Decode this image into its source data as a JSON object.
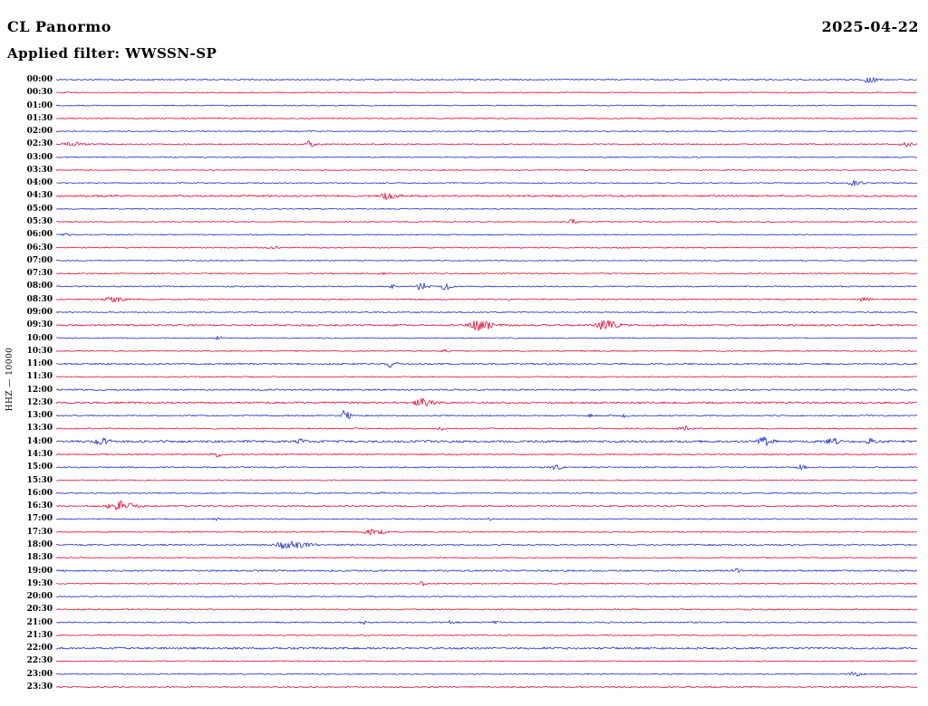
{
  "header": {
    "title": "CL Panormo",
    "date": "2025-04-22",
    "filter_label": "Applied filter: WWSSN-SP"
  },
  "y_axis_label": "HHZ — 10000",
  "chart_data": {
    "type": "line",
    "subtype": "helicorder-dayplot",
    "title": "CL Panormo",
    "date": "2025-04-22",
    "filter": "WWSSN-SP",
    "channel": "HHZ",
    "scale": 10000,
    "minutes_per_row": 30,
    "legend_position": "none",
    "grid": false,
    "colors": {
      "blue": "#2130c8",
      "red": "#e0103a"
    },
    "row_color_cycle": [
      "blue",
      "red"
    ],
    "rows": [
      {
        "label": "00:00",
        "color": "blue",
        "noise": 0.7,
        "events": [
          [
            0.944,
            5,
            3,
            6
          ]
        ]
      },
      {
        "label": "00:30",
        "color": "red",
        "noise": 0.6,
        "events": []
      },
      {
        "label": "01:00",
        "color": "blue",
        "noise": 0.6,
        "events": []
      },
      {
        "label": "01:30",
        "color": "red",
        "noise": 0.6,
        "events": []
      },
      {
        "label": "02:00",
        "color": "blue",
        "noise": 0.6,
        "events": []
      },
      {
        "label": "02:30",
        "color": "red",
        "noise": 0.7,
        "events": [
          [
            0.018,
            2.5,
            6,
            10
          ],
          [
            0.293,
            3.5,
            2,
            4
          ],
          [
            0.99,
            2,
            5,
            5
          ]
        ]
      },
      {
        "label": "03:00",
        "color": "blue",
        "noise": 0.6,
        "events": []
      },
      {
        "label": "03:30",
        "color": "red",
        "noise": 0.6,
        "events": []
      },
      {
        "label": "04:00",
        "color": "blue",
        "noise": 0.6,
        "events": [
          [
            0.926,
            3,
            4,
            8
          ]
        ]
      },
      {
        "label": "04:30",
        "color": "red",
        "noise": 1.0,
        "events": [
          [
            0.383,
            4,
            4,
            9
          ]
        ]
      },
      {
        "label": "05:00",
        "color": "blue",
        "noise": 0.6,
        "events": []
      },
      {
        "label": "05:30",
        "color": "red",
        "noise": 0.6,
        "events": [
          [
            0.599,
            2.5,
            3,
            5
          ]
        ]
      },
      {
        "label": "06:00",
        "color": "blue",
        "noise": 0.6,
        "events": [
          [
            0.014,
            1.8,
            3,
            3
          ]
        ]
      },
      {
        "label": "06:30",
        "color": "red",
        "noise": 0.6,
        "events": [
          [
            0.251,
            1.8,
            3,
            4
          ]
        ]
      },
      {
        "label": "07:00",
        "color": "blue",
        "noise": 0.6,
        "events": []
      },
      {
        "label": "07:30",
        "color": "red",
        "noise": 0.6,
        "events": [
          [
            0.377,
            1.5,
            2,
            3
          ]
        ]
      },
      {
        "label": "08:00",
        "color": "blue",
        "noise": 0.7,
        "events": [
          [
            0.39,
            3,
            2,
            3
          ],
          [
            0.423,
            7,
            2,
            5
          ],
          [
            0.451,
            4.5,
            2,
            4
          ]
        ]
      },
      {
        "label": "08:30",
        "color": "red",
        "noise": 0.7,
        "events": [
          [
            0.066,
            2.5,
            6,
            10
          ],
          [
            0.937,
            2,
            4,
            6
          ]
        ]
      },
      {
        "label": "09:00",
        "color": "blue",
        "noise": 0.6,
        "events": []
      },
      {
        "label": "09:30",
        "color": "red",
        "noise": 1.0,
        "events": [
          [
            0.488,
            5.5,
            5,
            14
          ],
          [
            0.636,
            6,
            5,
            10
          ]
        ]
      },
      {
        "label": "10:00",
        "color": "blue",
        "noise": 0.6,
        "events": [
          [
            0.188,
            1.8,
            2,
            3
          ]
        ]
      },
      {
        "label": "10:30",
        "color": "red",
        "noise": 0.6,
        "events": [
          [
            0.451,
            1.5,
            2,
            3
          ]
        ]
      },
      {
        "label": "11:00",
        "color": "blue",
        "noise": 0.9,
        "events": [
          [
            0.388,
            3,
            3,
            6
          ]
        ]
      },
      {
        "label": "11:30",
        "color": "red",
        "noise": 0.6,
        "events": []
      },
      {
        "label": "12:00",
        "color": "blue",
        "noise": 0.9,
        "events": []
      },
      {
        "label": "12:30",
        "color": "red",
        "noise": 1.0,
        "events": [
          [
            0.42,
            4.5,
            3,
            12
          ]
        ]
      },
      {
        "label": "13:00",
        "color": "blue",
        "noise": 0.7,
        "events": [
          [
            0.335,
            6.5,
            2,
            4
          ],
          [
            0.62,
            1.5,
            2,
            3
          ],
          [
            0.66,
            1.5,
            2,
            3
          ]
        ]
      },
      {
        "label": "13:30",
        "color": "red",
        "noise": 0.7,
        "events": [
          [
            0.446,
            2.5,
            2,
            3
          ],
          [
            0.728,
            3.5,
            3,
            5
          ]
        ]
      },
      {
        "label": "14:00",
        "color": "blue",
        "noise": 1.2,
        "events": [
          [
            0.051,
            3.5,
            4,
            7
          ],
          [
            0.283,
            2,
            3,
            4
          ],
          [
            0.82,
            4.5,
            4,
            8
          ],
          [
            0.9,
            3.5,
            3,
            6
          ],
          [
            0.945,
            2.5,
            3,
            4
          ]
        ]
      },
      {
        "label": "14:30",
        "color": "red",
        "noise": 0.7,
        "events": [
          [
            0.185,
            2.5,
            3,
            5
          ]
        ]
      },
      {
        "label": "15:00",
        "color": "blue",
        "noise": 0.7,
        "events": [
          [
            0.58,
            3,
            3,
            5
          ],
          [
            0.865,
            2.5,
            2,
            4
          ]
        ]
      },
      {
        "label": "15:30",
        "color": "red",
        "noise": 0.6,
        "events": []
      },
      {
        "label": "16:00",
        "color": "blue",
        "noise": 0.6,
        "events": [
          [
            0.378,
            1.5,
            2,
            3
          ]
        ]
      },
      {
        "label": "16:30",
        "color": "red",
        "noise": 0.8,
        "events": [
          [
            0.066,
            5.5,
            4,
            16
          ]
        ]
      },
      {
        "label": "17:00",
        "color": "blue",
        "noise": 0.6,
        "events": [
          [
            0.188,
            1.5,
            2,
            3
          ],
          [
            0.504,
            1.5,
            2,
            3
          ]
        ]
      },
      {
        "label": "17:30",
        "color": "red",
        "noise": 0.7,
        "events": [
          [
            0.367,
            3,
            6,
            10
          ]
        ]
      },
      {
        "label": "18:00",
        "color": "blue",
        "noise": 0.8,
        "events": [
          [
            0.262,
            4.5,
            4,
            18
          ]
        ]
      },
      {
        "label": "18:30",
        "color": "red",
        "noise": 0.6,
        "events": []
      },
      {
        "label": "19:00",
        "color": "blue",
        "noise": 0.9,
        "events": [
          [
            0.79,
            1.8,
            3,
            4
          ]
        ]
      },
      {
        "label": "19:30",
        "color": "red",
        "noise": 0.6,
        "events": [
          [
            0.425,
            2,
            2,
            3
          ]
        ]
      },
      {
        "label": "20:00",
        "color": "blue",
        "noise": 0.6,
        "events": []
      },
      {
        "label": "20:30",
        "color": "red",
        "noise": 0.7,
        "events": []
      },
      {
        "label": "21:00",
        "color": "blue",
        "noise": 0.7,
        "events": [
          [
            0.357,
            1.8,
            2,
            3
          ],
          [
            0.459,
            3,
            2,
            4
          ],
          [
            0.51,
            2,
            2,
            3
          ]
        ]
      },
      {
        "label": "21:30",
        "color": "red",
        "noise": 0.6,
        "events": []
      },
      {
        "label": "22:00",
        "color": "blue",
        "noise": 1.1,
        "events": []
      },
      {
        "label": "22:30",
        "color": "red",
        "noise": 0.6,
        "events": []
      },
      {
        "label": "23:00",
        "color": "blue",
        "noise": 0.6,
        "events": [
          [
            0.926,
            2.5,
            3,
            6
          ]
        ]
      },
      {
        "label": "23:30",
        "color": "red",
        "noise": 0.7,
        "events": []
      }
    ]
  }
}
